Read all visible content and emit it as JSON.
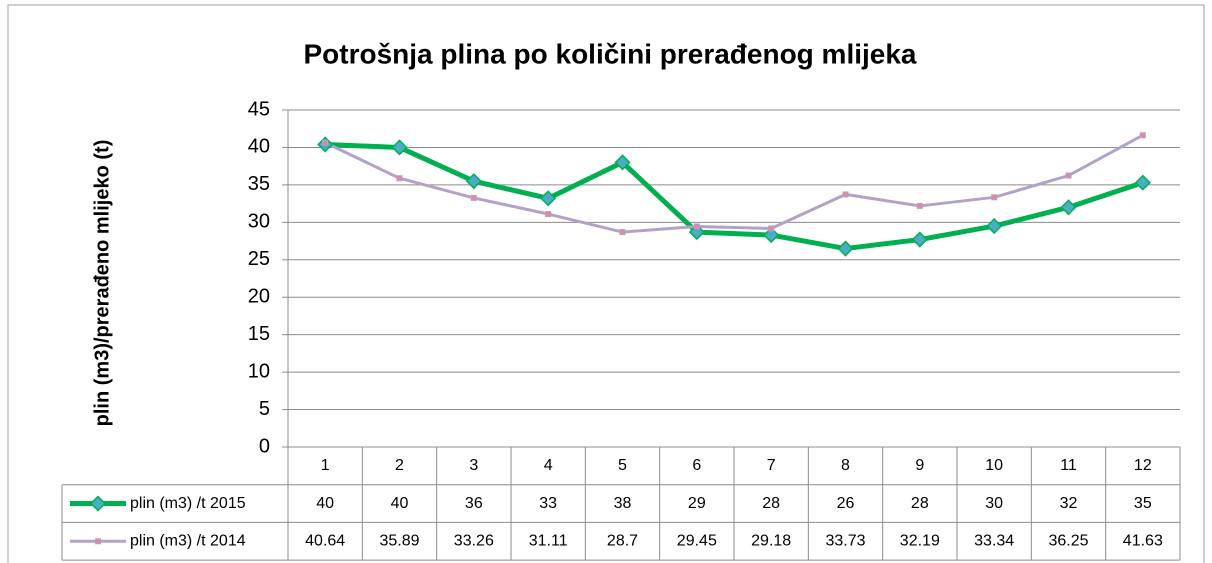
{
  "chart_data": {
    "type": "line",
    "title": "Potrošnja plina po količini prerađenog mlijeka",
    "y_label": "plin (m3)/prerađeno mlijeko (t)",
    "categories": [
      "1",
      "2",
      "3",
      "4",
      "5",
      "6",
      "7",
      "8",
      "9",
      "10",
      "11",
      "12"
    ],
    "series": [
      {
        "name": "plin (m3) /t 2015",
        "color": "#00b050",
        "marker_color": "#4bacc6",
        "marker": "diamond",
        "values": [
          40.4,
          40,
          35.5,
          33.2,
          38,
          28.7,
          28.3,
          26.5,
          27.7,
          29.5,
          32,
          35.3
        ],
        "value_labels": [
          "40",
          "40",
          "36",
          "33",
          "38",
          "29",
          "28",
          "26",
          "28",
          "30",
          "32",
          "35"
        ]
      },
      {
        "name": "plin (m3) /t 2014",
        "color": "#b3a2c7",
        "marker_color": "#e08aa0",
        "marker": "square",
        "values": [
          40.64,
          35.89,
          33.26,
          31.11,
          28.7,
          29.45,
          29.18,
          33.73,
          32.19,
          33.34,
          36.25,
          41.63
        ]
      }
    ],
    "ylim": [
      0,
      45
    ],
    "yticks": [
      0,
      5,
      10,
      15,
      20,
      25,
      30,
      35,
      40,
      45
    ],
    "grid": true,
    "data_table": true
  }
}
